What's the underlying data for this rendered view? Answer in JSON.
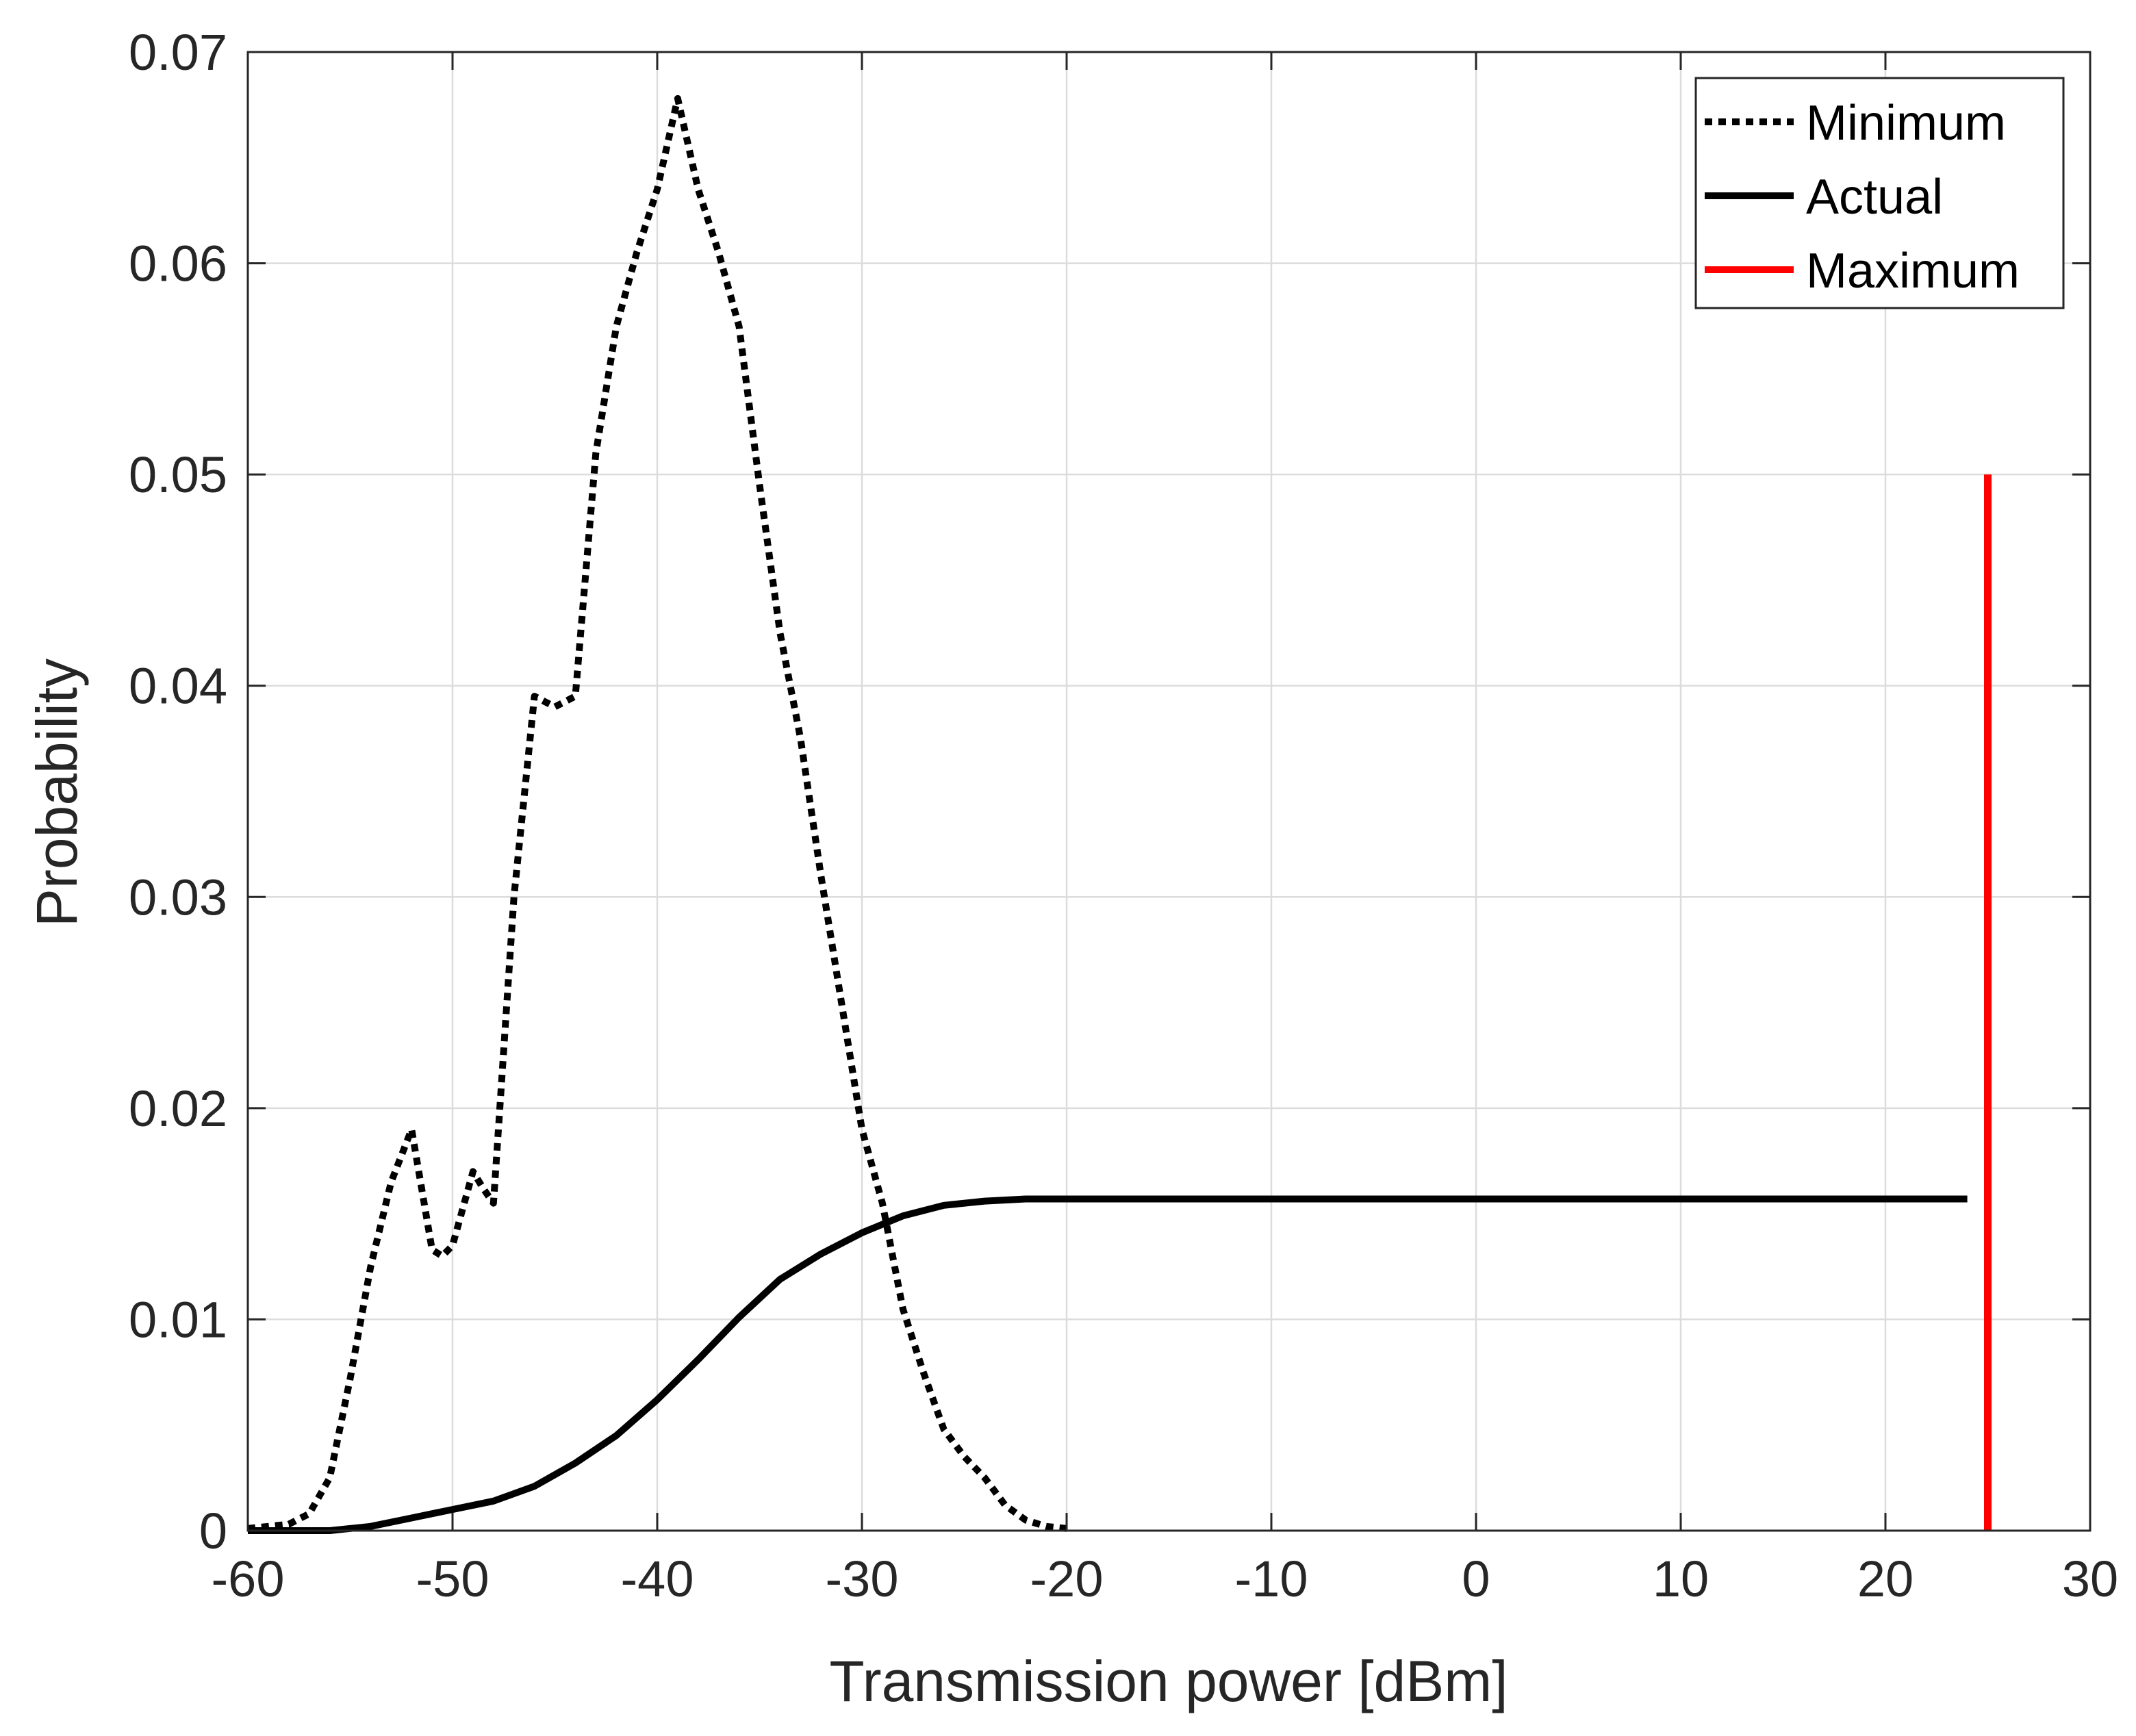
{
  "chart_data": {
    "type": "line",
    "title": "",
    "xlabel": "Transmission power [dBm]",
    "ylabel": "Probability",
    "xlim": [
      -60,
      30
    ],
    "ylim": [
      0,
      0.07
    ],
    "xticks": [
      -60,
      -50,
      -40,
      -30,
      -20,
      -10,
      0,
      10,
      20,
      30
    ],
    "yticks": [
      0,
      0.01,
      0.02,
      0.03,
      0.04,
      0.05,
      0.06,
      0.07
    ],
    "xtick_labels": [
      "-60",
      "-50",
      "-40",
      "-30",
      "-20",
      "-10",
      "0",
      "10",
      "20",
      "30"
    ],
    "ytick_labels": [
      "0",
      "0.01",
      "0.02",
      "0.03",
      "0.04",
      "0.05",
      "0.06",
      "0.07"
    ],
    "grid": true,
    "legend_position": "top-right",
    "series": [
      {
        "name": "Minimum",
        "style": "dotted",
        "color": "#000000",
        "x": [
          -60,
          -58,
          -57,
          -56,
          -55,
          -54,
          -53,
          -52,
          -51,
          -50.5,
          -50,
          -49,
          -48.5,
          -48,
          -47,
          -46,
          -45,
          -44,
          -43,
          -42,
          -41,
          -40,
          -39,
          -38,
          -37,
          -36,
          -35,
          -34,
          -33,
          -32,
          -31,
          -30,
          -29,
          -28,
          -27,
          -26,
          -25,
          -24,
          -23,
          -22,
          -21,
          -20
        ],
        "y": [
          0.0001,
          0.0003,
          0.0008,
          0.0025,
          0.0072,
          0.0125,
          0.0165,
          0.019,
          0.0133,
          0.013,
          0.0135,
          0.017,
          0.0162,
          0.0155,
          0.03,
          0.0395,
          0.039,
          0.0395,
          0.051,
          0.057,
          0.0605,
          0.0635,
          0.0678,
          0.0635,
          0.0605,
          0.057,
          0.0495,
          0.0425,
          0.0375,
          0.031,
          0.025,
          0.019,
          0.0155,
          0.0105,
          0.0075,
          0.0048,
          0.0035,
          0.0025,
          0.0012,
          0.0005,
          0.0002,
          0.0001
        ]
      },
      {
        "name": "Actual",
        "style": "solid",
        "color": "#000000",
        "x": [
          -60,
          -56,
          -54,
          -52,
          -50,
          -48,
          -46,
          -44,
          -42,
          -40,
          -38,
          -36,
          -35,
          -34,
          -32,
          -30,
          -28,
          -26,
          -24,
          -22,
          -20,
          -10,
          0,
          10,
          20,
          24
        ],
        "y": [
          0.0,
          0.0,
          0.0002,
          0.0006,
          0.001,
          0.0014,
          0.0021,
          0.0032,
          0.0045,
          0.0062,
          0.0081,
          0.0101,
          0.011,
          0.0119,
          0.0131,
          0.0141,
          0.0149,
          0.0154,
          0.0156,
          0.0157,
          0.0157,
          0.0157,
          0.0157,
          0.0157,
          0.0157,
          0.0157
        ]
      },
      {
        "name": "Maximum",
        "style": "solid",
        "color": "#ff0000",
        "x": [
          25,
          25
        ],
        "y": [
          0,
          0.05
        ]
      }
    ]
  }
}
